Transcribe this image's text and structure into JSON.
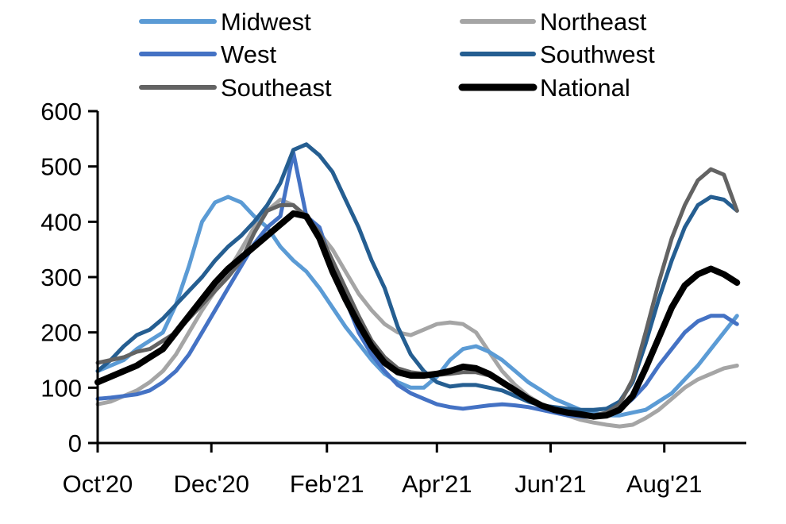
{
  "chart_data": {
    "type": "line",
    "title": "",
    "xlabel": "",
    "ylabel": "",
    "ylim": [
      0,
      600
    ],
    "yticks": [
      0,
      100,
      200,
      300,
      400,
      500,
      600
    ],
    "ytick_labels": [
      "0",
      "100",
      "200",
      "300",
      "400",
      "500",
      "600"
    ],
    "x_unit": "days since 1 Oct 2020",
    "xlim": [
      0,
      348
    ],
    "xticks": [
      0,
      61,
      123,
      182,
      243,
      304
    ],
    "xtick_labels": [
      "Oct'20",
      "Dec'20",
      "Feb'21",
      "Apr'21",
      "Jun'21",
      "Aug'21"
    ],
    "grid": false,
    "legend_position": "top",
    "x": [
      0,
      7,
      14,
      21,
      28,
      35,
      42,
      49,
      56,
      63,
      70,
      77,
      84,
      91,
      98,
      105,
      112,
      119,
      126,
      133,
      140,
      147,
      154,
      161,
      168,
      175,
      182,
      189,
      196,
      203,
      210,
      217,
      224,
      231,
      238,
      245,
      252,
      259,
      266,
      273,
      280,
      287,
      294,
      301,
      308,
      315,
      322,
      329,
      336,
      343
    ],
    "series": [
      {
        "name": "Midwest",
        "color": "#5b9bd5",
        "width": "normal",
        "values": [
          130,
          140,
          150,
          170,
          185,
          200,
          250,
          320,
          400,
          435,
          445,
          435,
          410,
          390,
          355,
          330,
          310,
          280,
          245,
          210,
          180,
          150,
          125,
          110,
          100,
          100,
          120,
          150,
          170,
          175,
          165,
          150,
          130,
          110,
          95,
          80,
          70,
          60,
          55,
          50,
          50,
          55,
          60,
          75,
          90,
          115,
          140,
          170,
          200,
          230
        ]
      },
      {
        "name": "Northeast",
        "color": "#a5a5a5",
        "width": "normal",
        "values": [
          70,
          75,
          85,
          95,
          110,
          130,
          160,
          200,
          240,
          275,
          310,
          350,
          390,
          420,
          440,
          430,
          405,
          380,
          350,
          310,
          270,
          240,
          215,
          200,
          195,
          205,
          215,
          218,
          215,
          200,
          165,
          130,
          105,
          85,
          70,
          60,
          50,
          42,
          37,
          33,
          30,
          33,
          45,
          60,
          80,
          100,
          115,
          125,
          135,
          140
        ]
      },
      {
        "name": "West",
        "color": "#4472c4",
        "width": "normal",
        "values": [
          80,
          82,
          85,
          88,
          95,
          110,
          130,
          160,
          200,
          240,
          280,
          320,
          360,
          390,
          410,
          525,
          410,
          390,
          320,
          260,
          200,
          160,
          130,
          105,
          90,
          80,
          70,
          65,
          62,
          65,
          68,
          70,
          68,
          65,
          60,
          55,
          50,
          48,
          47,
          50,
          60,
          80,
          105,
          140,
          170,
          200,
          220,
          230,
          230,
          215
        ]
      },
      {
        "name": "Southwest",
        "color": "#255e91",
        "width": "normal",
        "values": [
          130,
          150,
          175,
          195,
          205,
          225,
          250,
          275,
          300,
          330,
          355,
          375,
          400,
          430,
          470,
          530,
          540,
          520,
          490,
          440,
          390,
          330,
          280,
          210,
          160,
          130,
          110,
          102,
          105,
          105,
          100,
          95,
          85,
          75,
          68,
          65,
          62,
          60,
          60,
          62,
          75,
          110,
          180,
          260,
          330,
          390,
          430,
          445,
          440,
          420
        ]
      },
      {
        "name": "Southeast",
        "color": "#636363",
        "width": "normal",
        "values": [
          145,
          150,
          155,
          165,
          170,
          185,
          200,
          225,
          250,
          275,
          300,
          330,
          380,
          420,
          430,
          430,
          410,
          380,
          330,
          280,
          230,
          185,
          155,
          135,
          128,
          125,
          123,
          125,
          128,
          128,
          122,
          110,
          95,
          80,
          70,
          62,
          57,
          52,
          50,
          55,
          70,
          115,
          200,
          290,
          370,
          430,
          475,
          495,
          485,
          420
        ]
      },
      {
        "name": "National",
        "color": "#000000",
        "width": "thick",
        "values": [
          110,
          120,
          130,
          140,
          155,
          170,
          200,
          230,
          260,
          290,
          315,
          335,
          355,
          375,
          395,
          415,
          410,
          370,
          310,
          260,
          215,
          175,
          145,
          128,
          122,
          122,
          125,
          130,
          138,
          135,
          125,
          110,
          95,
          80,
          68,
          60,
          55,
          52,
          48,
          50,
          60,
          85,
          135,
          190,
          245,
          285,
          305,
          315,
          305,
          290
        ]
      }
    ],
    "legend": [
      {
        "name": "Midwest",
        "column": "left"
      },
      {
        "name": "Northeast",
        "column": "right"
      },
      {
        "name": "West",
        "column": "left"
      },
      {
        "name": "Southwest",
        "column": "right"
      },
      {
        "name": "Southeast",
        "column": "left"
      },
      {
        "name": "National",
        "column": "right"
      }
    ]
  }
}
